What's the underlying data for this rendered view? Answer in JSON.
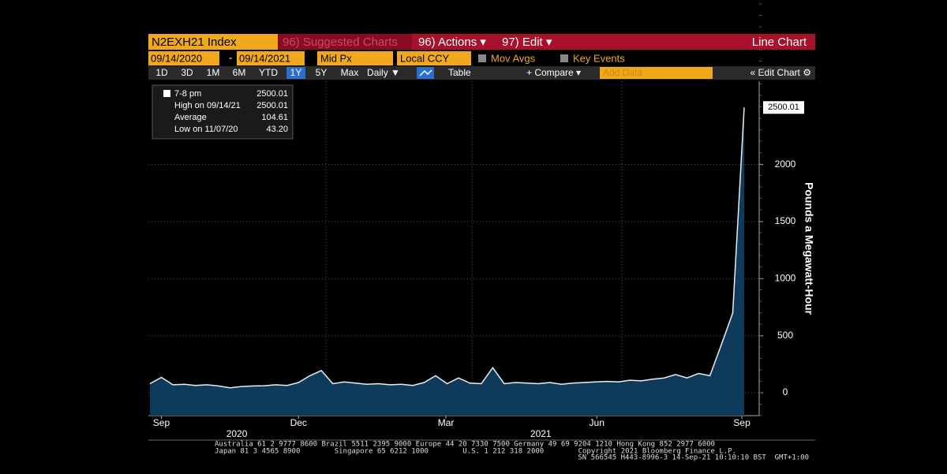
{
  "toolbar": {
    "security": "N2EXH21 Index",
    "suggested": "96) Suggested Charts",
    "actions": "96) Actions ▾",
    "edit": "97) Edit ▾",
    "chart_kind": "Line Chart",
    "start_date": "09/14/2020",
    "end_date": "09/14/2021",
    "field": "Mid Px",
    "currency": "Local CCY",
    "mov_avgs": "Mov Avgs",
    "key_events": "Key Events",
    "periods": [
      "1D",
      "3D",
      "1M",
      "6M",
      "YTD",
      "1Y",
      "5Y",
      "Max",
      "Daily ▼"
    ],
    "table": "Table",
    "compare": "+ Compare ▾",
    "add_data": "Add Data",
    "edit_chart": "« Edit Chart ⚙"
  },
  "info_box": [
    {
      "label": "7-8 pm",
      "value": "2500.01"
    },
    {
      "label": "High on 09/14/21",
      "value": "2500.01"
    },
    {
      "label": "Average",
      "value": "104.61"
    },
    {
      "label": "Low on 11/07/20",
      "value": "43.20"
    }
  ],
  "last_price_tag": "2500.01",
  "footer": [
    "Australia 61 2 9777 8600 Brazil 5511 2395 9000 Europe 44 20 7330 7500 Germany 49 69 9204 1210 Hong Kong 852 2977 6000",
    "Japan 81 3 4565 8900        Singapore 65 6212 1000        U.S. 1 212 318 2000        Copyright 2021 Bloomberg Finance L.P.",
    "SN 566545 H443-8996-3 14-Sep-21 10:10:10 BST  GMT+1:00"
  ],
  "chart_data": {
    "type": "line",
    "y_label": "Pounds a Megawatt-Hour",
    "series": [
      {
        "name": "N2EXH21 Index",
        "color": "#e8eef3",
        "fill": "#0e3a5c",
        "values": [
          80,
          135,
          70,
          75,
          65,
          70,
          60,
          43.2,
          55,
          60,
          62,
          70,
          65,
          90,
          150,
          195,
          80,
          95,
          85,
          75,
          80,
          70,
          75,
          65,
          90,
          150,
          80,
          130,
          85,
          80,
          220,
          80,
          90,
          85,
          80,
          90,
          75,
          85,
          90,
          95,
          100,
          95,
          110,
          105,
          120,
          130,
          160,
          130,
          170,
          150,
          420,
          700,
          2500.01
        ]
      }
    ],
    "xlim": [
      0,
      52
    ],
    "ylim": [
      -200,
      2730
    ],
    "xticks": [
      {
        "value": 1,
        "label": "Sep"
      },
      {
        "value": 13,
        "label": "Dec"
      },
      {
        "value": 25.9,
        "label": "Mar"
      },
      {
        "value": 39.1,
        "label": "Jun"
      },
      {
        "value": 51.8,
        "label": "Sep"
      }
    ],
    "xyears": [
      {
        "value": 7.6,
        "label": "2020"
      },
      {
        "value": 34.2,
        "label": "2021"
      }
    ],
    "xgrid": [
      15.4,
      28.2,
      41.3
    ],
    "yticks": [
      0,
      500,
      1000,
      1500,
      2000
    ],
    "grid": true
  }
}
